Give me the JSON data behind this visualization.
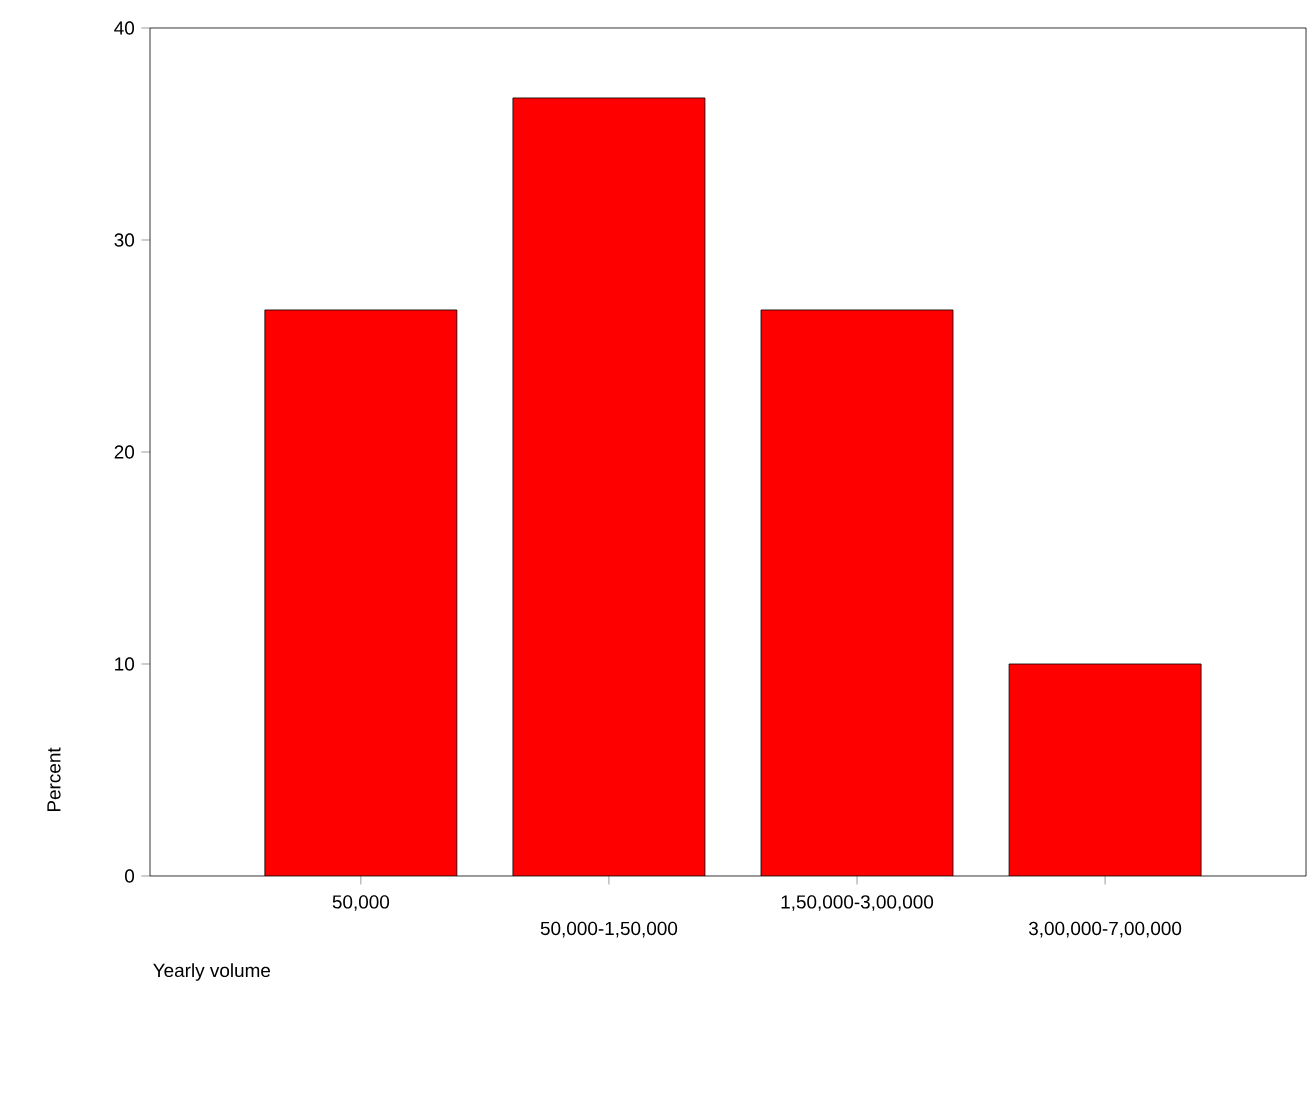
{
  "chart_data": {
    "type": "bar",
    "xlabel": "Yearly volume",
    "ylabel": "Percent",
    "categories": [
      "50,000",
      "50,000-1,50,000",
      "1,50,000-3,00,000",
      "3,00,000-7,00,000"
    ],
    "values": [
      26.7,
      36.7,
      26.7,
      10.0
    ],
    "color": "#ff0000",
    "ylim": [
      0,
      40
    ],
    "yticks": [
      0,
      10,
      20,
      30,
      40
    ],
    "grid": false
  }
}
